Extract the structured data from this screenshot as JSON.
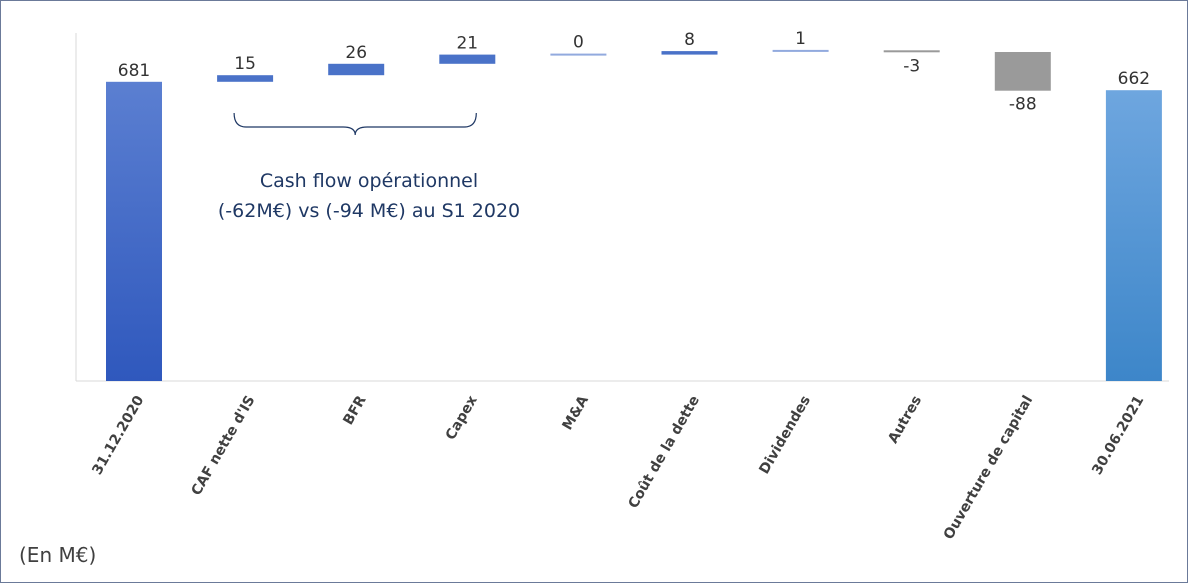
{
  "chart_data": {
    "type": "waterfall",
    "categories": [
      "31.12.2020",
      "CAF nette d'IS",
      "BFR",
      "Capex",
      "M&A",
      "Coût de la dette",
      "Dividendes",
      "Autres",
      "Ouverture de capital",
      "30.06.2021"
    ],
    "values": [
      681,
      15,
      26,
      21,
      0,
      8,
      1,
      -3,
      -88,
      662
    ],
    "value_labels": [
      "681",
      "15",
      "26",
      "21",
      "0",
      "8",
      "1",
      "-3",
      "-88",
      "662"
    ],
    "kinds": [
      "total",
      "delta",
      "delta",
      "delta",
      "delta",
      "delta",
      "delta",
      "delta",
      "delta",
      "total"
    ],
    "annotation": {
      "lines": [
        "Cash flow opérationnel",
        "(-62M€) vs (-94 M€) au S1 2020"
      ],
      "bracket_from": 1,
      "bracket_to": 3
    },
    "unit_label": "(En M€)",
    "colors": {
      "total_start_top": "#5b7fd1",
      "total_start_bottom": "#2f58bd",
      "total_end_top": "#6ea6df",
      "total_end_bottom": "#3d86c9",
      "delta": "#4a72c8",
      "negative": "#9a9a9a",
      "annotation": "#1f3864"
    }
  }
}
